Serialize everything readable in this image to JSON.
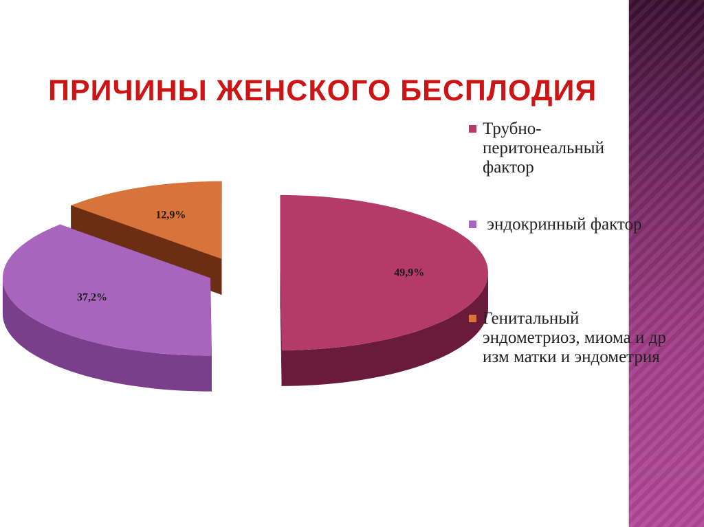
{
  "slide": {
    "title": "ПРИЧИНЫ ЖЕНСКОГО БЕСПЛОДИЯ"
  },
  "colors": {
    "title": "#cc1616",
    "band_top": "#3a1030",
    "band_bottom": "#b24898"
  },
  "chart_data": {
    "type": "pie",
    "style": "3d-exploded",
    "labels": [
      "Трубно-перитонеальный фактор",
      " эндокринный фактор",
      "Генитальный эндометриоз, миома и др изм матки и эндометрия"
    ],
    "values": [
      49.9,
      37.2,
      12.9
    ],
    "data_labels": [
      "49,9%",
      "37,2%",
      "12,9%"
    ],
    "colors": [
      "#b43a68",
      "#a865bd",
      "#d8733a"
    ],
    "side_colors": [
      "#6a1b3c",
      "#7a3f8a",
      "#6b2e12"
    ],
    "legend_position": "right"
  }
}
